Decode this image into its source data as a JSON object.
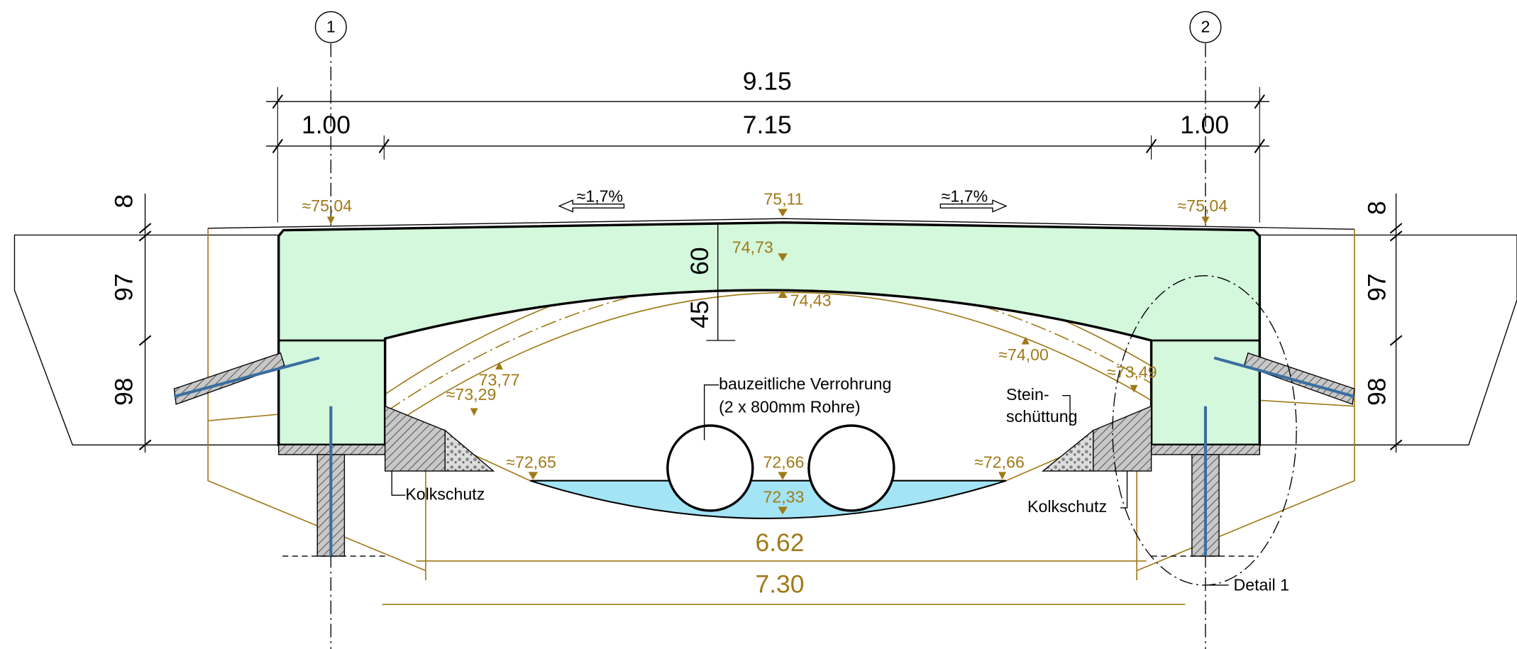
{
  "axes": [
    {
      "label": "1"
    },
    {
      "label": "2"
    }
  ],
  "dimensions": {
    "total_width": "9.15",
    "left_support": "1.00",
    "span": "7.15",
    "right_support": "1.00",
    "left_heights": [
      "8",
      "97",
      "98"
    ],
    "right_heights": [
      "8",
      "97",
      "98"
    ],
    "slab_top": "60",
    "slab_bottom": "45",
    "clear_span": "6.62",
    "bottom_span": "7.30"
  },
  "slopes": [
    "≈1,7%",
    "≈1,7%"
  ],
  "elevations": {
    "left_support": "≈75,04",
    "crown": "75,11",
    "right_support": "≈75,04",
    "arch_top": "74,73",
    "arch_bottom": "74,43",
    "right_arch": "≈74,00",
    "right_spring": "≈73,49",
    "left_arch": "73,77",
    "left_spring": "≈73,29",
    "left_bed": "≈72,65",
    "water_level": "72,66",
    "bed_bottom": "72,33",
    "right_bed": "≈72,66"
  },
  "labels": {
    "pipes_1": "bauzeitliche Verrohrung",
    "pipes_2": "(2 x 800mm Rohre)",
    "riprap_1": "Stein-",
    "riprap_2": "schüttung",
    "scour_left": "Kolkschutz",
    "scour_right": "Kolkschutz",
    "detail": "Detail 1"
  }
}
